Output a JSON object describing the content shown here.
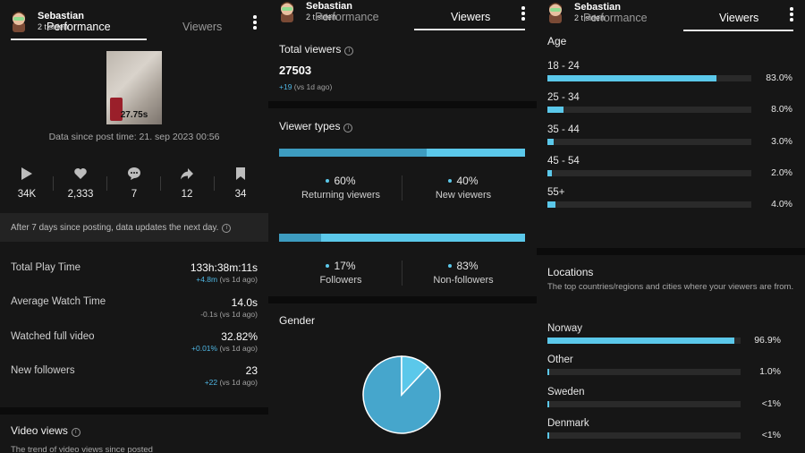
{
  "user": {
    "name": "Sebastian",
    "time": "2 t siden"
  },
  "colors": {
    "accent": "#5bc8ea",
    "accent_dark": "#3d9cc0",
    "background": "#161616"
  },
  "panel1": {
    "tab_performance": "Performance",
    "tab_viewers": "Viewers",
    "thumbnail_duration": "27.75s",
    "data_since": "Data since post time: 21. sep 2023 00:56",
    "stats": [
      {
        "icon": "play-icon",
        "value": "34K"
      },
      {
        "icon": "heart-icon",
        "value": "2,333"
      },
      {
        "icon": "comment-icon",
        "value": "7"
      },
      {
        "icon": "share-icon",
        "value": "12"
      },
      {
        "icon": "bookmark-icon",
        "value": "34"
      }
    ],
    "update_notice": "After 7 days since posting, data updates the next day.",
    "metrics": [
      {
        "label": "Total Play Time",
        "value": "133h:38m:11s",
        "delta": "+4.8m",
        "suffix": " (vs 1d ago)"
      },
      {
        "label": "Average Watch Time",
        "value": "14.0s",
        "delta": "-0.1s",
        "suffix": " (vs 1d ago)"
      },
      {
        "label": "Watched full video",
        "value": "32.82%",
        "delta": "+0.01%",
        "suffix": " (vs 1d ago)"
      },
      {
        "label": "New followers",
        "value": "23",
        "delta": "+22",
        "suffix": " (vs 1d ago)"
      }
    ],
    "video_views_title": "Video views",
    "video_views_sub": "The trend of video views since posted"
  },
  "panel2": {
    "tab_performance": "Performance",
    "tab_viewers": "Viewers",
    "total_viewers_title": "Total viewers",
    "total_viewers_value": "27503",
    "total_viewers_delta": "+19",
    "total_viewers_suffix": " (vs 1d ago)",
    "viewer_types_title": "Viewer types",
    "returning": {
      "pct_label": "60%",
      "label": "Returning viewers",
      "pct": 60
    },
    "new": {
      "pct_label": "40%",
      "label": "New viewers",
      "pct": 40
    },
    "followers": {
      "pct_label": "17%",
      "label": "Followers",
      "pct": 17
    },
    "nonfollowers": {
      "pct_label": "83%",
      "label": "Non-followers",
      "pct": 83
    },
    "gender_title": "Gender",
    "gender_slices": [
      88,
      12
    ]
  },
  "panel3": {
    "tab_performance": "Performance",
    "tab_viewers": "Viewers",
    "age_title": "Age",
    "ages": [
      {
        "label": "18 - 24",
        "pct_label": "83.0%",
        "pct": 83.0
      },
      {
        "label": "25 - 34",
        "pct_label": "8.0%",
        "pct": 8.0
      },
      {
        "label": "35 - 44",
        "pct_label": "3.0%",
        "pct": 3.0
      },
      {
        "label": "45 - 54",
        "pct_label": "2.0%",
        "pct": 2.0
      },
      {
        "label": "55+",
        "pct_label": "4.0%",
        "pct": 4.0
      }
    ],
    "locations_title": "Locations",
    "locations_sub": "The top countries/regions and cities where your viewers are from.",
    "locations": [
      {
        "label": "Norway",
        "pct_label": "96.9%",
        "pct": 96.9
      },
      {
        "label": "Other",
        "pct_label": "1.0%",
        "pct": 1.0
      },
      {
        "label": "Sweden",
        "pct_label": "<1%",
        "pct": 0.6
      },
      {
        "label": "Denmark",
        "pct_label": "<1%",
        "pct": 0.3
      }
    ]
  }
}
